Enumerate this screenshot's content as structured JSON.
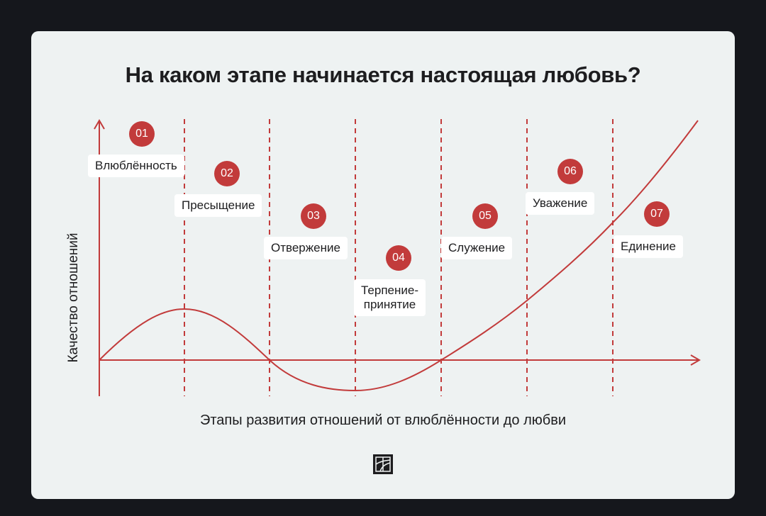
{
  "title": "На каком этапе начинается настоящая любовь?",
  "axes": {
    "y_label": "Качество отношений",
    "x_label": "Этапы развития отношений от влюблённости до любви"
  },
  "stages": [
    {
      "num": "01",
      "label": "Влюблённость"
    },
    {
      "num": "02",
      "label": "Пресыщение"
    },
    {
      "num": "03",
      "label": "Отвержение"
    },
    {
      "num": "04",
      "label": "Терпение-\nпринятие"
    },
    {
      "num": "05",
      "label": "Служение"
    },
    {
      "num": "06",
      "label": "Уважение"
    },
    {
      "num": "07",
      "label": "Единение"
    }
  ],
  "colors": {
    "accent": "#c23b3b",
    "card_background": "#eef2f2",
    "page_background": "#15171c",
    "text": "#1d1d1f"
  },
  "logo": {
    "icon": "publisher-logo-icon"
  }
}
